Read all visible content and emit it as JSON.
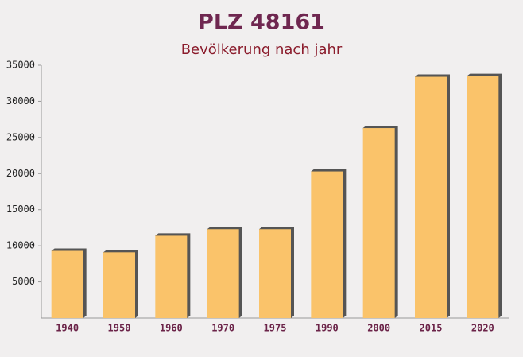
{
  "chart_data": {
    "type": "bar",
    "title": "PLZ 48161",
    "subtitle": "Bevölkerung nach jahr",
    "categories": [
      "1940",
      "1950",
      "1960",
      "1970",
      "1975",
      "1990",
      "2000",
      "2015",
      "2020"
    ],
    "values": [
      9300,
      9100,
      11400,
      12300,
      12300,
      20300,
      26300,
      33400,
      33500
    ],
    "color": "#fac36a",
    "ylim": [
      0,
      35000
    ],
    "yticks": [
      5000,
      10000,
      15000,
      20000,
      25000,
      30000,
      35000
    ],
    "grid": false
  }
}
